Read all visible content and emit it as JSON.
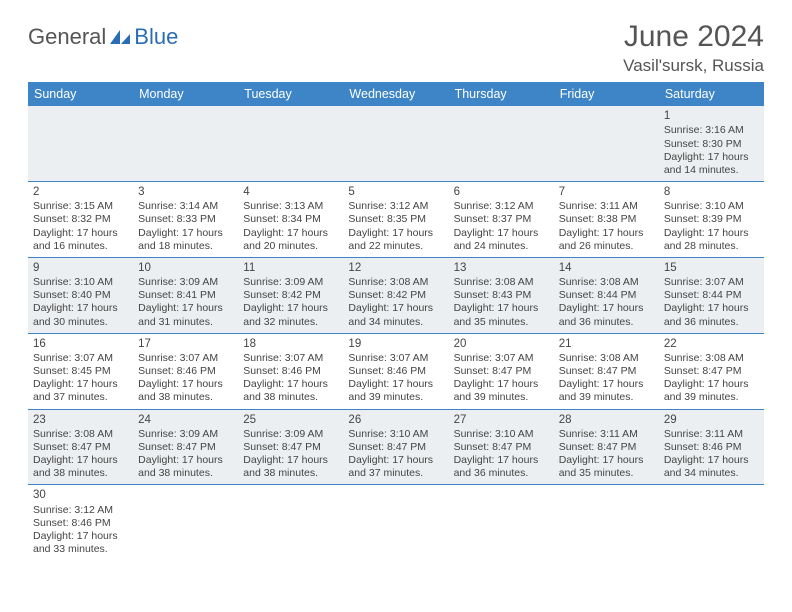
{
  "logo": {
    "text1": "General",
    "text2": "Blue"
  },
  "header": {
    "title": "June 2024",
    "subtitle": "Vasil'sursk, Russia"
  },
  "colors": {
    "header_bg": "#3d85c6",
    "header_text": "#ffffff",
    "alt_row_bg": "#eceff1",
    "row_border": "#3d85c6",
    "logo_blue": "#2a6db5"
  },
  "weekdays": [
    "Sunday",
    "Monday",
    "Tuesday",
    "Wednesday",
    "Thursday",
    "Friday",
    "Saturday"
  ],
  "weeks": [
    {
      "alt": true,
      "days": [
        null,
        null,
        null,
        null,
        null,
        null,
        {
          "n": "1",
          "sr": "Sunrise: 3:16 AM",
          "ss": "Sunset: 8:30 PM",
          "d1": "Daylight: 17 hours",
          "d2": "and 14 minutes."
        }
      ]
    },
    {
      "alt": false,
      "days": [
        {
          "n": "2",
          "sr": "Sunrise: 3:15 AM",
          "ss": "Sunset: 8:32 PM",
          "d1": "Daylight: 17 hours",
          "d2": "and 16 minutes."
        },
        {
          "n": "3",
          "sr": "Sunrise: 3:14 AM",
          "ss": "Sunset: 8:33 PM",
          "d1": "Daylight: 17 hours",
          "d2": "and 18 minutes."
        },
        {
          "n": "4",
          "sr": "Sunrise: 3:13 AM",
          "ss": "Sunset: 8:34 PM",
          "d1": "Daylight: 17 hours",
          "d2": "and 20 minutes."
        },
        {
          "n": "5",
          "sr": "Sunrise: 3:12 AM",
          "ss": "Sunset: 8:35 PM",
          "d1": "Daylight: 17 hours",
          "d2": "and 22 minutes."
        },
        {
          "n": "6",
          "sr": "Sunrise: 3:12 AM",
          "ss": "Sunset: 8:37 PM",
          "d1": "Daylight: 17 hours",
          "d2": "and 24 minutes."
        },
        {
          "n": "7",
          "sr": "Sunrise: 3:11 AM",
          "ss": "Sunset: 8:38 PM",
          "d1": "Daylight: 17 hours",
          "d2": "and 26 minutes."
        },
        {
          "n": "8",
          "sr": "Sunrise: 3:10 AM",
          "ss": "Sunset: 8:39 PM",
          "d1": "Daylight: 17 hours",
          "d2": "and 28 minutes."
        }
      ]
    },
    {
      "alt": true,
      "days": [
        {
          "n": "9",
          "sr": "Sunrise: 3:10 AM",
          "ss": "Sunset: 8:40 PM",
          "d1": "Daylight: 17 hours",
          "d2": "and 30 minutes."
        },
        {
          "n": "10",
          "sr": "Sunrise: 3:09 AM",
          "ss": "Sunset: 8:41 PM",
          "d1": "Daylight: 17 hours",
          "d2": "and 31 minutes."
        },
        {
          "n": "11",
          "sr": "Sunrise: 3:09 AM",
          "ss": "Sunset: 8:42 PM",
          "d1": "Daylight: 17 hours",
          "d2": "and 32 minutes."
        },
        {
          "n": "12",
          "sr": "Sunrise: 3:08 AM",
          "ss": "Sunset: 8:42 PM",
          "d1": "Daylight: 17 hours",
          "d2": "and 34 minutes."
        },
        {
          "n": "13",
          "sr": "Sunrise: 3:08 AM",
          "ss": "Sunset: 8:43 PM",
          "d1": "Daylight: 17 hours",
          "d2": "and 35 minutes."
        },
        {
          "n": "14",
          "sr": "Sunrise: 3:08 AM",
          "ss": "Sunset: 8:44 PM",
          "d1": "Daylight: 17 hours",
          "d2": "and 36 minutes."
        },
        {
          "n": "15",
          "sr": "Sunrise: 3:07 AM",
          "ss": "Sunset: 8:44 PM",
          "d1": "Daylight: 17 hours",
          "d2": "and 36 minutes."
        }
      ]
    },
    {
      "alt": false,
      "days": [
        {
          "n": "16",
          "sr": "Sunrise: 3:07 AM",
          "ss": "Sunset: 8:45 PM",
          "d1": "Daylight: 17 hours",
          "d2": "and 37 minutes."
        },
        {
          "n": "17",
          "sr": "Sunrise: 3:07 AM",
          "ss": "Sunset: 8:46 PM",
          "d1": "Daylight: 17 hours",
          "d2": "and 38 minutes."
        },
        {
          "n": "18",
          "sr": "Sunrise: 3:07 AM",
          "ss": "Sunset: 8:46 PM",
          "d1": "Daylight: 17 hours",
          "d2": "and 38 minutes."
        },
        {
          "n": "19",
          "sr": "Sunrise: 3:07 AM",
          "ss": "Sunset: 8:46 PM",
          "d1": "Daylight: 17 hours",
          "d2": "and 39 minutes."
        },
        {
          "n": "20",
          "sr": "Sunrise: 3:07 AM",
          "ss": "Sunset: 8:47 PM",
          "d1": "Daylight: 17 hours",
          "d2": "and 39 minutes."
        },
        {
          "n": "21",
          "sr": "Sunrise: 3:08 AM",
          "ss": "Sunset: 8:47 PM",
          "d1": "Daylight: 17 hours",
          "d2": "and 39 minutes."
        },
        {
          "n": "22",
          "sr": "Sunrise: 3:08 AM",
          "ss": "Sunset: 8:47 PM",
          "d1": "Daylight: 17 hours",
          "d2": "and 39 minutes."
        }
      ]
    },
    {
      "alt": true,
      "days": [
        {
          "n": "23",
          "sr": "Sunrise: 3:08 AM",
          "ss": "Sunset: 8:47 PM",
          "d1": "Daylight: 17 hours",
          "d2": "and 38 minutes."
        },
        {
          "n": "24",
          "sr": "Sunrise: 3:09 AM",
          "ss": "Sunset: 8:47 PM",
          "d1": "Daylight: 17 hours",
          "d2": "and 38 minutes."
        },
        {
          "n": "25",
          "sr": "Sunrise: 3:09 AM",
          "ss": "Sunset: 8:47 PM",
          "d1": "Daylight: 17 hours",
          "d2": "and 38 minutes."
        },
        {
          "n": "26",
          "sr": "Sunrise: 3:10 AM",
          "ss": "Sunset: 8:47 PM",
          "d1": "Daylight: 17 hours",
          "d2": "and 37 minutes."
        },
        {
          "n": "27",
          "sr": "Sunrise: 3:10 AM",
          "ss": "Sunset: 8:47 PM",
          "d1": "Daylight: 17 hours",
          "d2": "and 36 minutes."
        },
        {
          "n": "28",
          "sr": "Sunrise: 3:11 AM",
          "ss": "Sunset: 8:47 PM",
          "d1": "Daylight: 17 hours",
          "d2": "and 35 minutes."
        },
        {
          "n": "29",
          "sr": "Sunrise: 3:11 AM",
          "ss": "Sunset: 8:46 PM",
          "d1": "Daylight: 17 hours",
          "d2": "and 34 minutes."
        }
      ]
    },
    {
      "alt": false,
      "days": [
        {
          "n": "30",
          "sr": "Sunrise: 3:12 AM",
          "ss": "Sunset: 8:46 PM",
          "d1": "Daylight: 17 hours",
          "d2": "and 33 minutes."
        },
        null,
        null,
        null,
        null,
        null,
        null
      ]
    }
  ]
}
